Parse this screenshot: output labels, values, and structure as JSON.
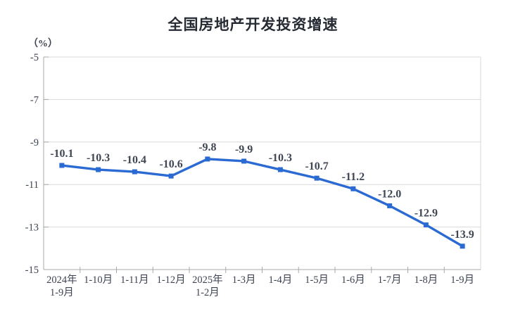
{
  "page": {
    "background": "#ffffff"
  },
  "chart_data": {
    "type": "line",
    "title": "全国房地产开发投资增速",
    "ylabel": "（%）",
    "categories": [
      "2024年1-9月",
      "1-10月",
      "1-11月",
      "1-12月",
      "2025年1-2月",
      "1-3月",
      "1-4月",
      "1-5月",
      "1-6月",
      "1-7月",
      "1-8月",
      "1-9月"
    ],
    "x_tick_lines": [
      [
        "2024年",
        "1-9月"
      ],
      [
        "1-10月"
      ],
      [
        "1-11月"
      ],
      [
        "1-12月"
      ],
      [
        "2025年",
        "1-2月"
      ],
      [
        "1-3月"
      ],
      [
        "1-4月"
      ],
      [
        "1-5月"
      ],
      [
        "1-6月"
      ],
      [
        "1-7月"
      ],
      [
        "1-8月"
      ],
      [
        "1-9月"
      ]
    ],
    "values": [
      -10.1,
      -10.3,
      -10.4,
      -10.6,
      -9.8,
      -9.9,
      -10.3,
      -10.7,
      -11.2,
      -12.0,
      -12.9,
      -13.9
    ],
    "value_labels": [
      "-10.1",
      "-10.3",
      "-10.4",
      "-10.6",
      "-9.8",
      "-9.9",
      "-10.3",
      "-10.7",
      "-11.2",
      "-12.0",
      "-12.9",
      "-13.9"
    ],
    "ylim": [
      -15,
      -5
    ],
    "yticks": [
      -5,
      -7,
      -9,
      -11,
      -13,
      -15
    ],
    "grid": true,
    "legend": "none",
    "line_color": "#2a6ad2",
    "marker": "square",
    "text_color": "#3d4352",
    "grid_color": "#d9d9d9",
    "axis_color": "#a8a8a8"
  }
}
